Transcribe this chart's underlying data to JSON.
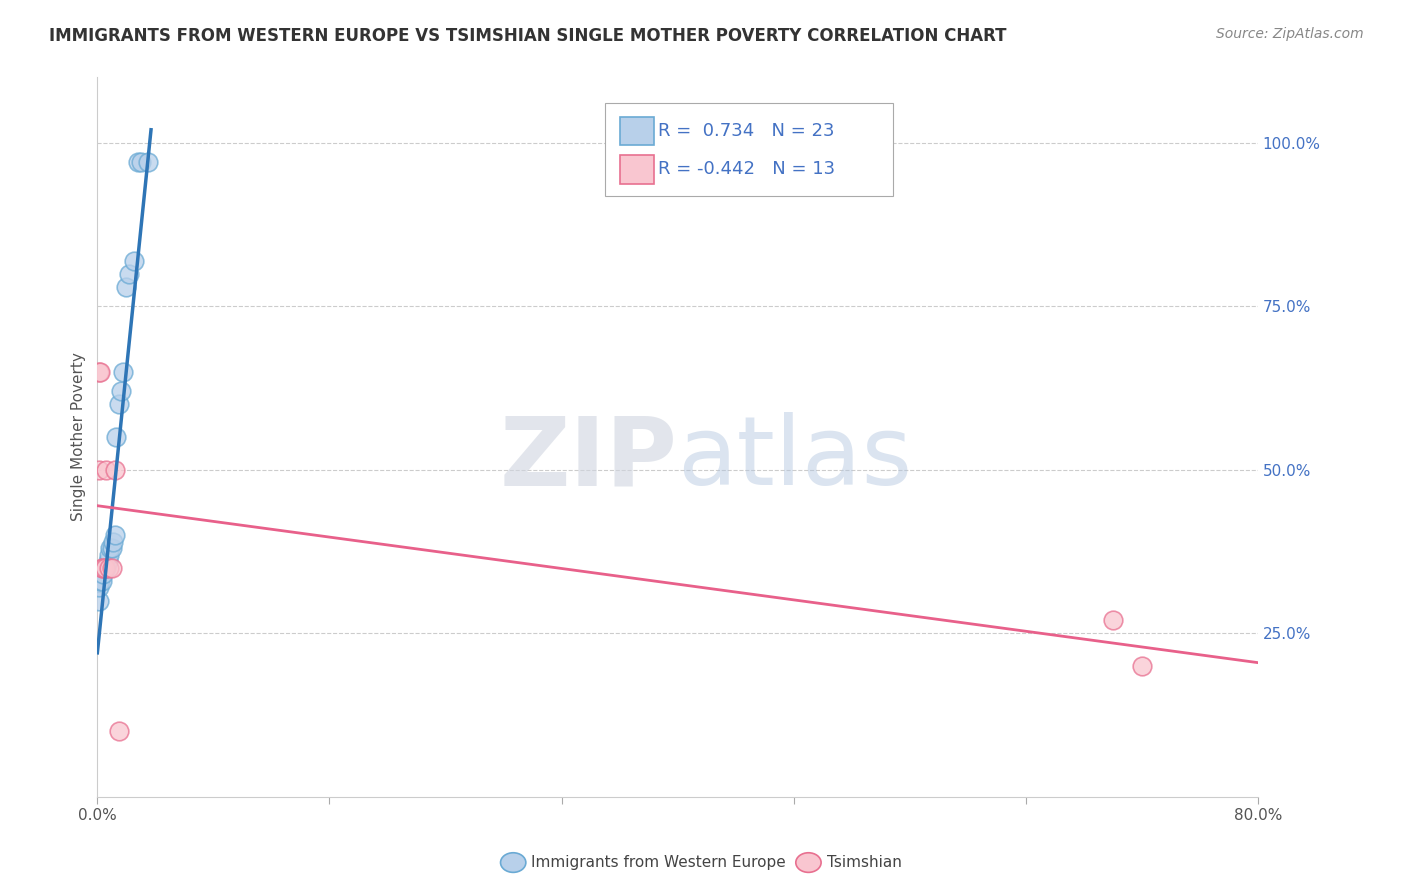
{
  "title": "IMMIGRANTS FROM WESTERN EUROPE VS TSIMSHIAN SINGLE MOTHER POVERTY CORRELATION CHART",
  "source": "Source: ZipAtlas.com",
  "ylabel": "Single Mother Poverty",
  "ytick_labels": [
    "100.0%",
    "75.0%",
    "50.0%",
    "25.0%"
  ],
  "ytick_values": [
    1.0,
    0.75,
    0.5,
    0.25
  ],
  "xlim": [
    0.0,
    0.8
  ],
  "ylim": [
    0.0,
    1.1
  ],
  "blue_series": {
    "label": "Immigrants from Western Europe",
    "R": "0.734",
    "N": "23",
    "color": "#b8d0ea",
    "edge_color": "#6aaad4",
    "line_color": "#2e75b6",
    "points_x": [
      0.001,
      0.001,
      0.002,
      0.003,
      0.004,
      0.005,
      0.006,
      0.007,
      0.008,
      0.009,
      0.01,
      0.011,
      0.012,
      0.013,
      0.015,
      0.016,
      0.018,
      0.02,
      0.022,
      0.025,
      0.028,
      0.03,
      0.035
    ],
    "points_y": [
      0.3,
      0.32,
      0.33,
      0.33,
      0.34,
      0.35,
      0.35,
      0.36,
      0.37,
      0.38,
      0.38,
      0.39,
      0.4,
      0.55,
      0.6,
      0.62,
      0.65,
      0.78,
      0.8,
      0.82,
      0.97,
      0.97,
      0.97
    ],
    "trend_x": [
      0.0,
      0.037
    ],
    "trend_y": [
      0.22,
      1.02
    ]
  },
  "pink_series": {
    "label": "Tsimshian",
    "R": "-0.442",
    "N": "13",
    "color": "#f9c6d0",
    "edge_color": "#e87090",
    "line_color": "#e8608a",
    "points_x": [
      0.001,
      0.001,
      0.002,
      0.003,
      0.004,
      0.005,
      0.006,
      0.008,
      0.01,
      0.012,
      0.015,
      0.7,
      0.72
    ],
    "points_y": [
      0.5,
      0.65,
      0.65,
      0.35,
      0.35,
      0.35,
      0.5,
      0.35,
      0.35,
      0.5,
      0.1,
      0.27,
      0.2
    ],
    "trend_x": [
      0.0,
      0.8
    ],
    "trend_y": [
      0.445,
      0.205
    ]
  },
  "legend_box_color": "#ffffff",
  "bg_color": "#ffffff",
  "grid_color": "#cccccc",
  "title_color": "#333333",
  "right_axis_color": "#4472c4",
  "legend_R_blue": "0.734",
  "legend_N_blue": "23",
  "legend_R_pink": "-0.442",
  "legend_N_pink": "13",
  "legend_color_blue": "#4472c4",
  "legend_color_pink": "#e8608a"
}
